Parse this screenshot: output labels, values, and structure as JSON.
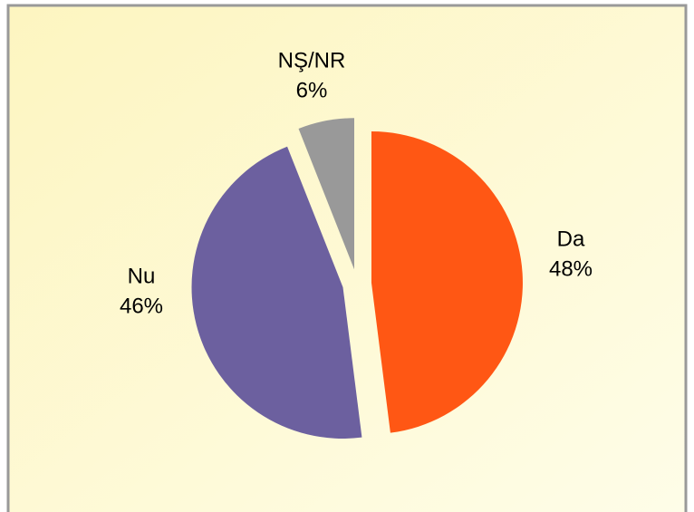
{
  "chart_data": {
    "type": "pie",
    "categories": [
      "Da",
      "Nu",
      "NŞ/NR"
    ],
    "values": [
      48,
      46,
      6
    ],
    "value_labels": [
      "48%",
      "46%",
      "6%"
    ],
    "colors": [
      "#ff5714",
      "#6c609f",
      "#999999"
    ]
  }
}
